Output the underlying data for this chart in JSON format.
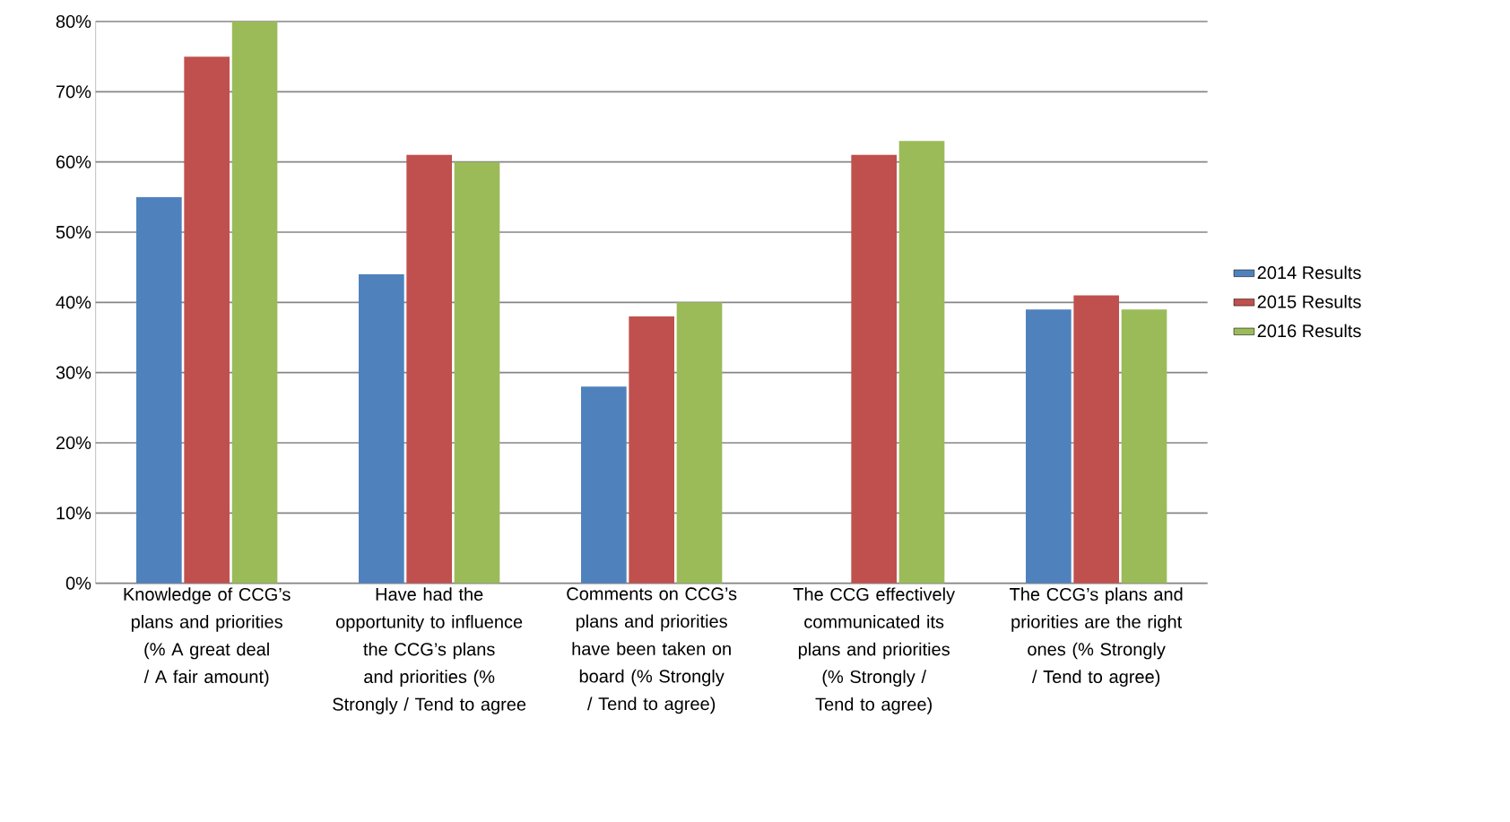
{
  "chart_data": {
    "type": "bar",
    "categories": [
      "Knowledge of CCG’s plans and priorities (% A great deal / A fair amount)",
      "Have had the opportunity to influence the CCG’s plans and priorities (% Strongly / Tend to agree",
      "Comments on CCG’s plans and priorities have been taken on board (% Strongly / Tend to agree)",
      "The CCG effectively communicated its plans and priorities (% Strongly / Tend to agree)",
      "The CCG’s plans and priorities are the right ones (% Strongly / Tend to agree)"
    ],
    "series": [
      {
        "name": "2014 Results",
        "color": "#4f81bd",
        "values": [
          55,
          44,
          28,
          null,
          39
        ]
      },
      {
        "name": "2015 Results",
        "color": "#c0504d",
        "values": [
          75,
          61,
          38,
          61,
          41
        ]
      },
      {
        "name": "2016 Results",
        "color": "#9bbb59",
        "values": [
          80,
          60,
          40,
          63,
          39
        ]
      }
    ],
    "ylim": [
      0,
      80
    ],
    "yticks": [
      {
        "value": 0,
        "label": "0%"
      },
      {
        "value": 10,
        "label": "10%"
      },
      {
        "value": 20,
        "label": "20%"
      },
      {
        "value": 30,
        "label": "30%"
      },
      {
        "value": 40,
        "label": "40%"
      },
      {
        "value": 50,
        "label": "50%"
      },
      {
        "value": 60,
        "label": "60%"
      },
      {
        "value": 70,
        "label": "70%"
      },
      {
        "value": 80,
        "label": "80%"
      }
    ],
    "grid": "y",
    "legend": "right"
  }
}
